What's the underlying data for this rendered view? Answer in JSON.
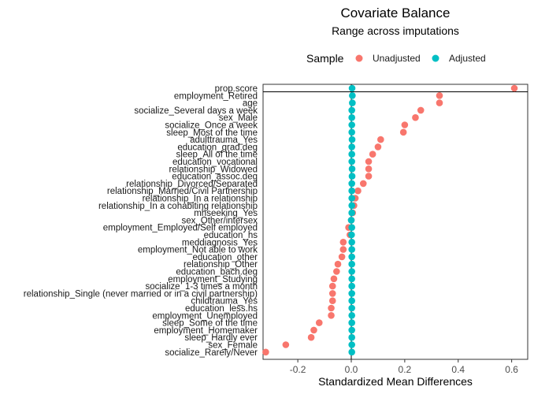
{
  "chart_data": {
    "type": "scatter",
    "title": "Covariate Balance",
    "subtitle": "Range across imputations",
    "xlabel": "Standardized Mean Differences",
    "ylabel": "",
    "xlim": [
      -0.33,
      0.66
    ],
    "xticks": [
      -0.2,
      0.0,
      0.2,
      0.4,
      0.6
    ],
    "xtick_labels": [
      "-0.2",
      "0.0",
      "0.2",
      "0.4",
      "0.6"
    ],
    "reference_lines": [
      0
    ],
    "grid": false,
    "legend": {
      "title": "Sample",
      "placement": "top",
      "entries": [
        "Unadjusted",
        "Adjusted"
      ]
    },
    "colors": {
      "Unadjusted": "#F8766D",
      "Adjusted": "#00BFC4"
    },
    "categories": [
      "prop.score",
      "employment_Retired",
      "age",
      "socialize_Several days a week",
      "sex_Male",
      "socialize_Once a week",
      "sleep_Most of the time",
      "adulttrauma_Yes",
      "education_grad.deg",
      "sleep_All of the time",
      "education_vocational",
      "relationship_Widowed",
      "education_assoc.deg",
      "relationship_Divorced/Separated",
      "relationship_Married/Civil Partnership",
      "relationship_In a relationship",
      "relationship_In a cohabiting relationship",
      "mhseeking_Yes",
      "sex_Other/intersex",
      "employment_Employed/Self employed",
      "education_hs",
      "meddiagnosis_Yes",
      "employment_Not able to work",
      "education_other",
      "relationship_Other",
      "education_bach.deg",
      "employment_Studying",
      "socialize_1-3 times a month",
      "relationship_Single (never married or in a civil partnership)",
      "childtrauma_Yes",
      "education_less.hs",
      "employment_Unemployed",
      "sleep_Some of the time",
      "employment_Homemaker",
      "sleep_Hardly ever",
      "sex_Female",
      "socialize_Rarely/Never"
    ],
    "series": [
      {
        "name": "Unadjusted",
        "values": [
          0.61,
          0.33,
          0.33,
          0.26,
          0.24,
          0.2,
          0.195,
          0.11,
          0.1,
          0.08,
          0.065,
          0.065,
          0.065,
          0.045,
          0.025,
          0.015,
          0.01,
          0.005,
          0.0,
          -0.01,
          -0.005,
          -0.03,
          -0.03,
          -0.035,
          -0.05,
          -0.055,
          -0.065,
          -0.07,
          -0.07,
          -0.07,
          -0.075,
          -0.075,
          -0.12,
          -0.14,
          -0.15,
          -0.245,
          -0.32
        ]
      },
      {
        "name": "Adjusted",
        "values": [
          0.003,
          0.004,
          0.004,
          0.002,
          0.002,
          0.002,
          0.002,
          0.003,
          0.002,
          0.002,
          0.002,
          0.003,
          0.003,
          0.002,
          0.002,
          0.002,
          0.002,
          0.002,
          0.0,
          0.002,
          0.001,
          0.002,
          0.002,
          0.002,
          0.002,
          0.002,
          0.002,
          0.002,
          0.002,
          0.002,
          0.002,
          0.002,
          0.002,
          0.002,
          0.002,
          0.002,
          0.002
        ]
      }
    ]
  }
}
